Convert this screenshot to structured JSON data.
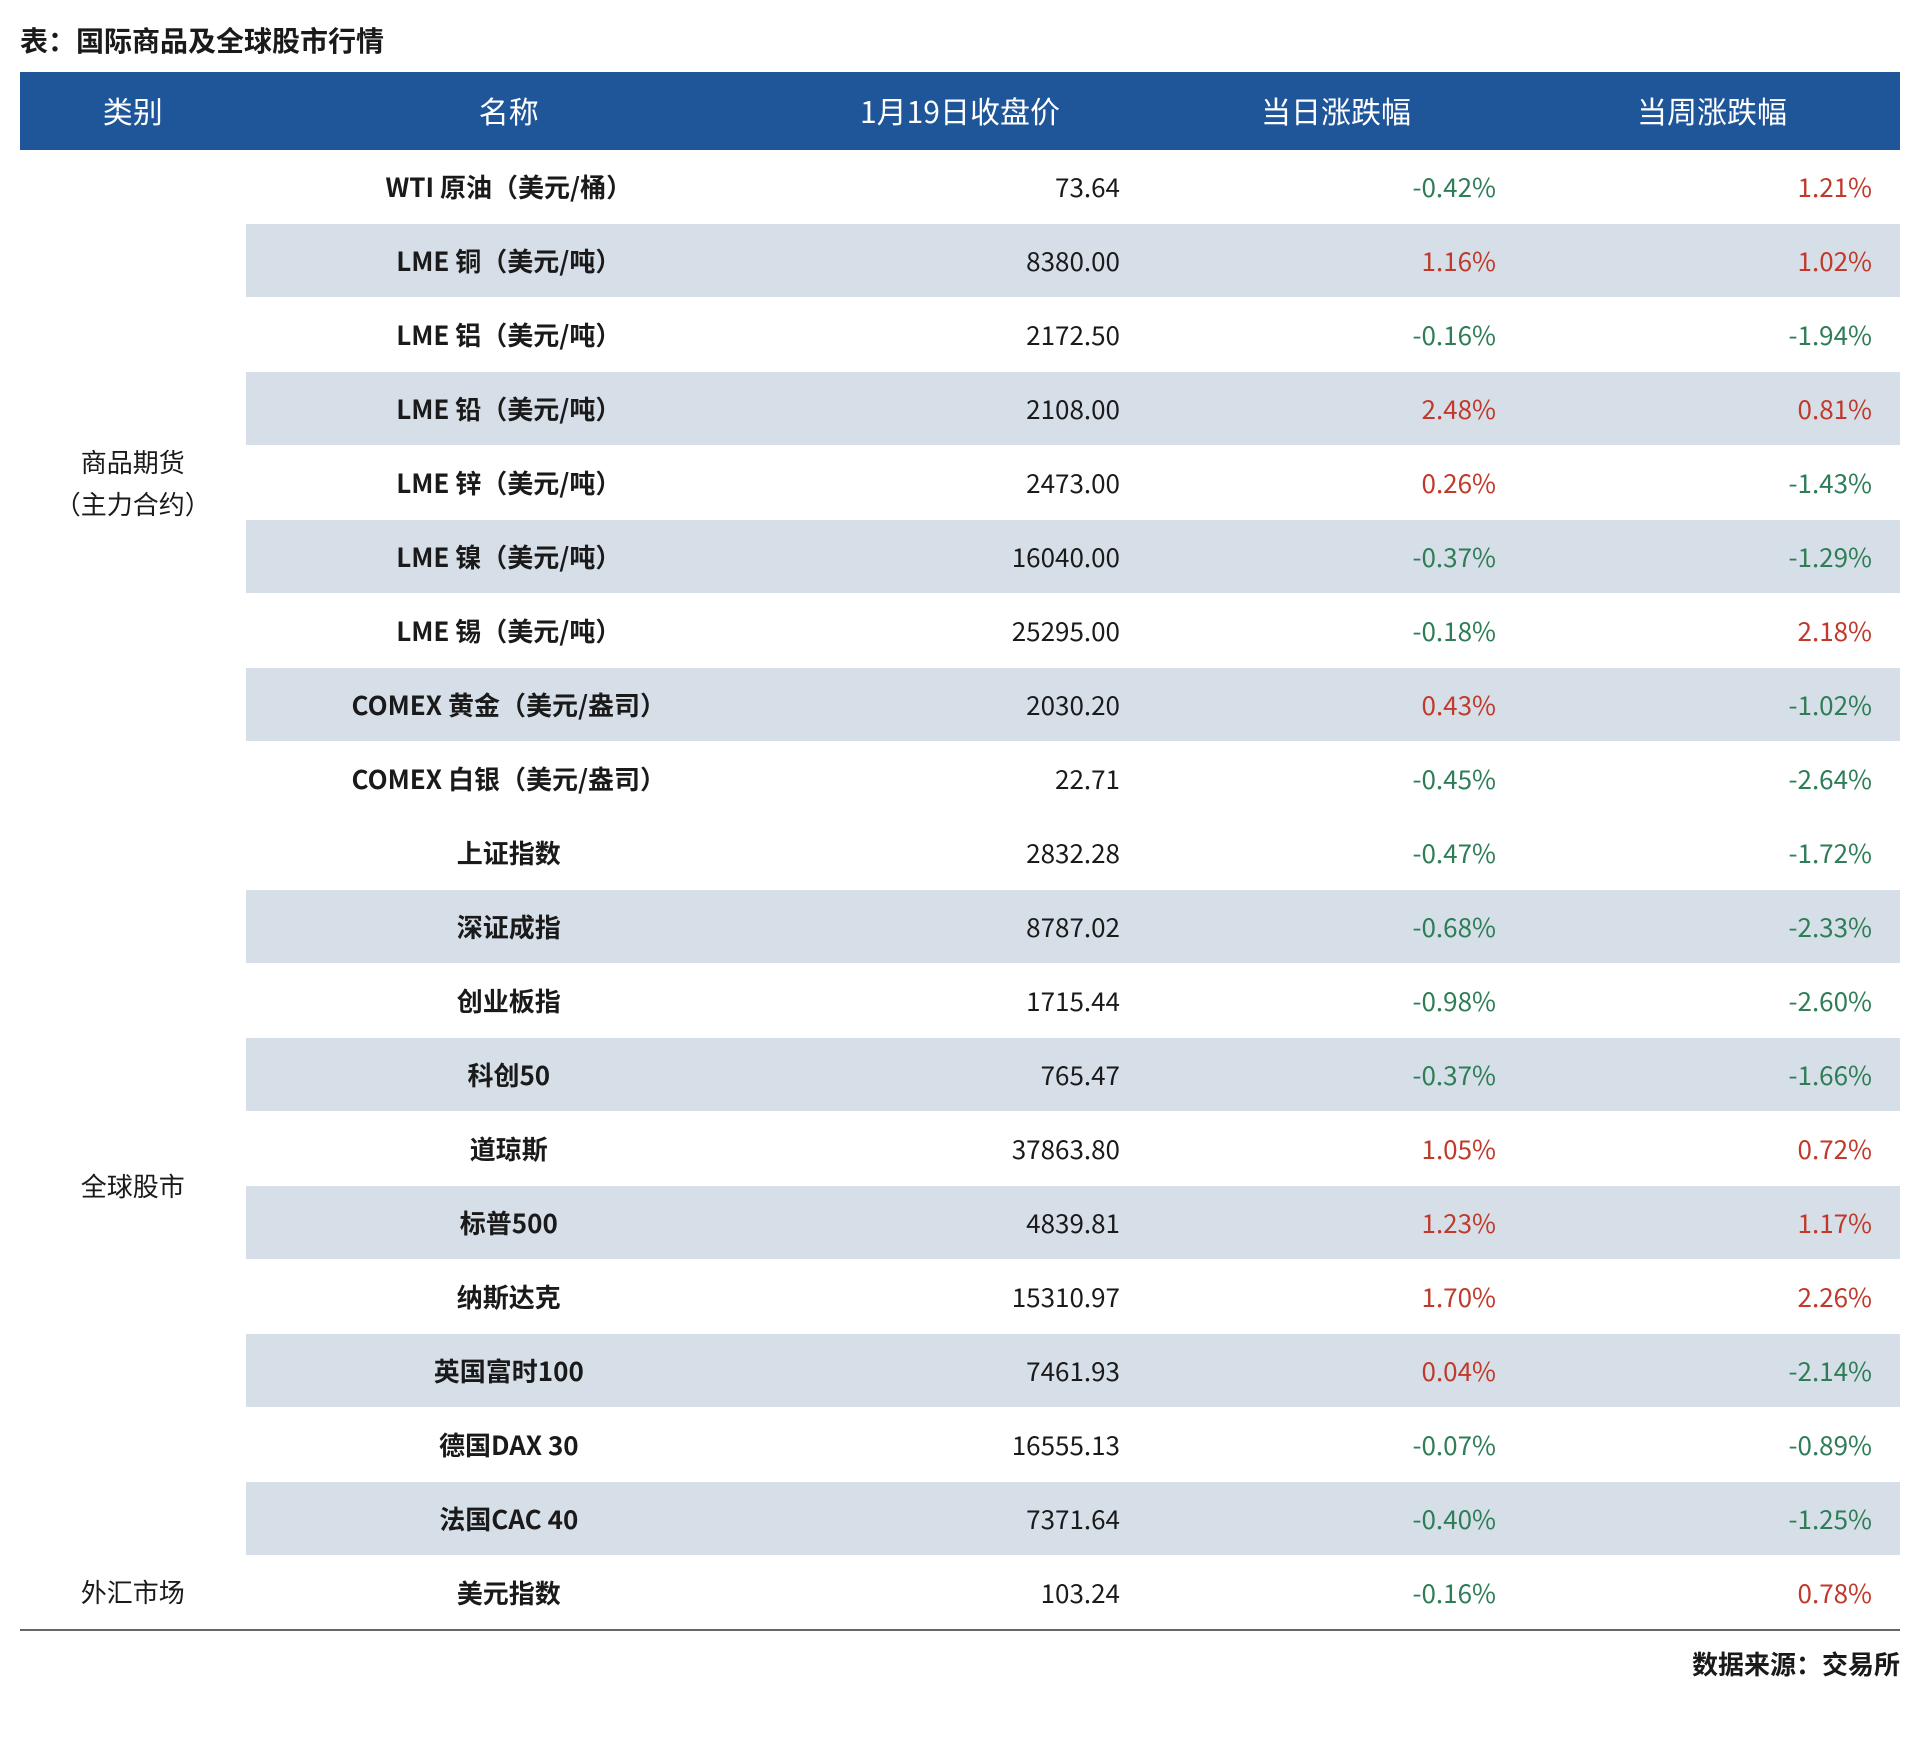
{
  "title": "表：国际商品及全球股市行情",
  "source": "数据来源：交易所",
  "columns": {
    "category": "类别",
    "name": "名称",
    "close": "1月19日收盘价",
    "daily": "当日涨跌幅",
    "weekly": "当周涨跌幅"
  },
  "colors": {
    "header_bg": "#1f5599",
    "header_text": "#ffffff",
    "row_alt_bg": "#d6dfe8",
    "positive": "#c0392b",
    "negative": "#2e7d57"
  },
  "groups": [
    {
      "category_lines": [
        "商品期货",
        "（主力合约）"
      ],
      "rows": [
        {
          "name": "WTI 原油（美元/桶）",
          "close": "73.64",
          "daily": "-0.42%",
          "daily_sign": -1,
          "weekly": "1.21%",
          "weekly_sign": 1
        },
        {
          "name": "LME 铜（美元/吨）",
          "close": "8380.00",
          "daily": "1.16%",
          "daily_sign": 1,
          "weekly": "1.02%",
          "weekly_sign": 1
        },
        {
          "name": "LME 铝（美元/吨）",
          "close": "2172.50",
          "daily": "-0.16%",
          "daily_sign": -1,
          "weekly": "-1.94%",
          "weekly_sign": -1
        },
        {
          "name": "LME 铅（美元/吨）",
          "close": "2108.00",
          "daily": "2.48%",
          "daily_sign": 1,
          "weekly": "0.81%",
          "weekly_sign": 1
        },
        {
          "name": "LME 锌（美元/吨）",
          "close": "2473.00",
          "daily": "0.26%",
          "daily_sign": 1,
          "weekly": "-1.43%",
          "weekly_sign": -1
        },
        {
          "name": "LME 镍（美元/吨）",
          "close": "16040.00",
          "daily": "-0.37%",
          "daily_sign": -1,
          "weekly": "-1.29%",
          "weekly_sign": -1
        },
        {
          "name": "LME 锡（美元/吨）",
          "close": "25295.00",
          "daily": "-0.18%",
          "daily_sign": -1,
          "weekly": "2.18%",
          "weekly_sign": 1
        },
        {
          "name": "COMEX 黄金（美元/盎司）",
          "close": "2030.20",
          "daily": "0.43%",
          "daily_sign": 1,
          "weekly": "-1.02%",
          "weekly_sign": -1
        },
        {
          "name": "COMEX 白银（美元/盎司）",
          "close": "22.71",
          "daily": "-0.45%",
          "daily_sign": -1,
          "weekly": "-2.64%",
          "weekly_sign": -1
        }
      ]
    },
    {
      "category_lines": [
        "全球股市"
      ],
      "rows": [
        {
          "name": "上证指数",
          "close": "2832.28",
          "daily": "-0.47%",
          "daily_sign": -1,
          "weekly": "-1.72%",
          "weekly_sign": -1
        },
        {
          "name": "深证成指",
          "close": "8787.02",
          "daily": "-0.68%",
          "daily_sign": -1,
          "weekly": "-2.33%",
          "weekly_sign": -1
        },
        {
          "name": "创业板指",
          "close": "1715.44",
          "daily": "-0.98%",
          "daily_sign": -1,
          "weekly": "-2.60%",
          "weekly_sign": -1
        },
        {
          "name": "科创50",
          "close": "765.47",
          "daily": "-0.37%",
          "daily_sign": -1,
          "weekly": "-1.66%",
          "weekly_sign": -1
        },
        {
          "name": "道琼斯",
          "close": "37863.80",
          "daily": "1.05%",
          "daily_sign": 1,
          "weekly": "0.72%",
          "weekly_sign": 1
        },
        {
          "name": "标普500",
          "close": "4839.81",
          "daily": "1.23%",
          "daily_sign": 1,
          "weekly": "1.17%",
          "weekly_sign": 1
        },
        {
          "name": "纳斯达克",
          "close": "15310.97",
          "daily": "1.70%",
          "daily_sign": 1,
          "weekly": "2.26%",
          "weekly_sign": 1
        },
        {
          "name": "英国富时100",
          "close": "7461.93",
          "daily": "0.04%",
          "daily_sign": 1,
          "weekly": "-2.14%",
          "weekly_sign": -1
        },
        {
          "name": "德国DAX 30",
          "close": "16555.13",
          "daily": "-0.07%",
          "daily_sign": -1,
          "weekly": "-0.89%",
          "weekly_sign": -1
        },
        {
          "name": "法国CAC 40",
          "close": "7371.64",
          "daily": "-0.40%",
          "daily_sign": -1,
          "weekly": "-1.25%",
          "weekly_sign": -1
        }
      ]
    },
    {
      "category_lines": [
        "外汇市场"
      ],
      "rows": [
        {
          "name": "美元指数",
          "close": "103.24",
          "daily": "-0.16%",
          "daily_sign": -1,
          "weekly": "0.78%",
          "weekly_sign": 1
        }
      ]
    }
  ]
}
